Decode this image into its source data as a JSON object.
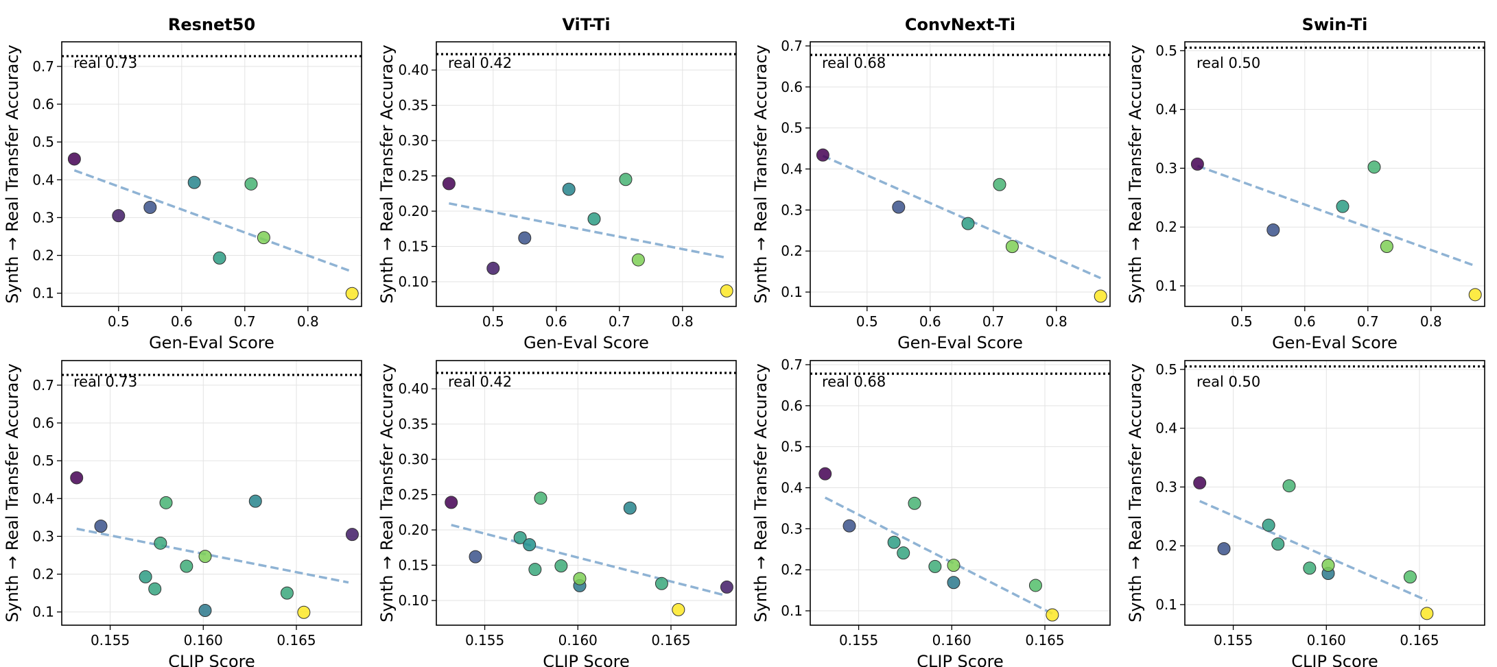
{
  "colors": {
    "trend_line": "#8fb3d4",
    "real_line": "#000000",
    "grid": "#e3e3e3",
    "point_palette": [
      "#440154",
      "#3b528b",
      "#21918c",
      "#5ec962",
      "#fde725"
    ]
  },
  "chart_data": [
    {
      "type": "scatter",
      "title": "Resnet50",
      "xlabel": "Gen-Eval Score",
      "ylabel": "Synth → Real Transfer Accuracy",
      "real_label": "real 0.73",
      "real_value": 0.727,
      "xlim": [
        0.41,
        0.885
      ],
      "ylim": [
        0.065,
        0.765
      ],
      "xticks": [
        0.5,
        0.6,
        0.7,
        0.8
      ],
      "xtick_labels": [
        "0.5",
        "0.6",
        "0.7",
        "0.8"
      ],
      "yticks": [
        0.1,
        0.2,
        0.3,
        0.4,
        0.5,
        0.6,
        0.7
      ],
      "ytick_labels": [
        "0.1",
        "0.2",
        "0.3",
        "0.4",
        "0.5",
        "0.6",
        "0.7"
      ],
      "trend": {
        "x": [
          0.43,
          0.87
        ],
        "y": [
          0.425,
          0.157
        ]
      },
      "points": [
        {
          "x": 0.43,
          "y": 0.455,
          "c": 0.0
        },
        {
          "x": 0.5,
          "y": 0.305,
          "c": 0.08
        },
        {
          "x": 0.55,
          "y": 0.327,
          "c": 0.25
        },
        {
          "x": 0.62,
          "y": 0.393,
          "c": 0.45
        },
        {
          "x": 0.66,
          "y": 0.193,
          "c": 0.55
        },
        {
          "x": 0.71,
          "y": 0.389,
          "c": 0.65
        },
        {
          "x": 0.73,
          "y": 0.247,
          "c": 0.8
        },
        {
          "x": 0.87,
          "y": 0.099,
          "c": 1.0
        }
      ]
    },
    {
      "type": "scatter",
      "title": "ViT-Ti",
      "xlabel": "Gen-Eval Score",
      "ylabel": "Synth → Real Transfer Accuracy",
      "real_label": "real 0.42",
      "real_value": 0.4225,
      "xlim": [
        0.41,
        0.885
      ],
      "ylim": [
        0.065,
        0.44
      ],
      "xticks": [
        0.5,
        0.6,
        0.7,
        0.8
      ],
      "xtick_labels": [
        "0.5",
        "0.6",
        "0.7",
        "0.8"
      ],
      "yticks": [
        0.1,
        0.15,
        0.2,
        0.25,
        0.3,
        0.35,
        0.4
      ],
      "ytick_labels": [
        "0.10",
        "0.15",
        "0.20",
        "0.25",
        "0.30",
        "0.35",
        "0.40"
      ],
      "trend": {
        "x": [
          0.43,
          0.87
        ],
        "y": [
          0.211,
          0.134
        ]
      },
      "points": [
        {
          "x": 0.43,
          "y": 0.239,
          "c": 0.0
        },
        {
          "x": 0.5,
          "y": 0.119,
          "c": 0.08
        },
        {
          "x": 0.55,
          "y": 0.162,
          "c": 0.25
        },
        {
          "x": 0.62,
          "y": 0.231,
          "c": 0.45
        },
        {
          "x": 0.66,
          "y": 0.189,
          "c": 0.55
        },
        {
          "x": 0.71,
          "y": 0.245,
          "c": 0.65
        },
        {
          "x": 0.73,
          "y": 0.131,
          "c": 0.8
        },
        {
          "x": 0.87,
          "y": 0.087,
          "c": 1.0
        }
      ]
    },
    {
      "type": "scatter",
      "title": "ConvNext-Ti",
      "xlabel": "Gen-Eval Score",
      "ylabel": "Synth → Real Transfer Accuracy",
      "real_label": "real 0.68",
      "real_value": 0.678,
      "xlim": [
        0.41,
        0.885
      ],
      "ylim": [
        0.065,
        0.71
      ],
      "xticks": [
        0.5,
        0.6,
        0.7,
        0.8
      ],
      "xtick_labels": [
        "0.5",
        "0.6",
        "0.7",
        "0.8"
      ],
      "yticks": [
        0.1,
        0.2,
        0.3,
        0.4,
        0.5,
        0.6,
        0.7
      ],
      "ytick_labels": [
        "0.1",
        "0.2",
        "0.3",
        "0.4",
        "0.5",
        "0.6",
        "0.7"
      ],
      "trend": {
        "x": [
          0.43,
          0.87
        ],
        "y": [
          0.432,
          0.134
        ]
      },
      "points": [
        {
          "x": 0.43,
          "y": 0.434,
          "c": 0.0
        },
        {
          "x": 0.55,
          "y": 0.307,
          "c": 0.25
        },
        {
          "x": 0.66,
          "y": 0.267,
          "c": 0.55
        },
        {
          "x": 0.71,
          "y": 0.362,
          "c": 0.65
        },
        {
          "x": 0.73,
          "y": 0.211,
          "c": 0.8
        },
        {
          "x": 0.87,
          "y": 0.09,
          "c": 1.0
        }
      ]
    },
    {
      "type": "scatter",
      "title": "Swin-Ti",
      "xlabel": "Gen-Eval Score",
      "ylabel": "Synth → Real Transfer Accuracy",
      "real_label": "real 0.50",
      "real_value": 0.505,
      "xlim": [
        0.41,
        0.885
      ],
      "ylim": [
        0.065,
        0.515
      ],
      "xticks": [
        0.5,
        0.6,
        0.7,
        0.8
      ],
      "xtick_labels": [
        "0.5",
        "0.6",
        "0.7",
        "0.8"
      ],
      "yticks": [
        0.1,
        0.2,
        0.3,
        0.4,
        0.5
      ],
      "ytick_labels": [
        "0.1",
        "0.2",
        "0.3",
        "0.4",
        "0.5"
      ],
      "trend": {
        "x": [
          0.43,
          0.87
        ],
        "y": [
          0.304,
          0.134
        ]
      },
      "points": [
        {
          "x": 0.43,
          "y": 0.307,
          "c": 0.0
        },
        {
          "x": 0.55,
          "y": 0.195,
          "c": 0.25
        },
        {
          "x": 0.66,
          "y": 0.235,
          "c": 0.55
        },
        {
          "x": 0.71,
          "y": 0.302,
          "c": 0.65
        },
        {
          "x": 0.73,
          "y": 0.167,
          "c": 0.8
        },
        {
          "x": 0.87,
          "y": 0.085,
          "c": 1.0
        }
      ]
    },
    {
      "type": "scatter",
      "title": "",
      "xlabel": "CLIP Score",
      "ylabel": "Synth → Real Transfer Accuracy",
      "real_label": "real 0.73",
      "real_value": 0.727,
      "xlim": [
        0.1524,
        0.1685
      ],
      "ylim": [
        0.065,
        0.765
      ],
      "xticks": [
        0.155,
        0.16,
        0.165
      ],
      "xtick_labels": [
        "0.155",
        "0.160",
        "0.165"
      ],
      "yticks": [
        0.1,
        0.2,
        0.3,
        0.4,
        0.5,
        0.6,
        0.7
      ],
      "ytick_labels": [
        "0.1",
        "0.2",
        "0.3",
        "0.4",
        "0.5",
        "0.6",
        "0.7"
      ],
      "trend": {
        "x": [
          0.1532,
          0.1678
        ],
        "y": [
          0.32,
          0.178
        ]
      },
      "points": [
        {
          "x": 0.1532,
          "y": 0.455,
          "c": 0.0
        },
        {
          "x": 0.1545,
          "y": 0.327,
          "c": 0.25
        },
        {
          "x": 0.1569,
          "y": 0.193,
          "c": 0.55
        },
        {
          "x": 0.1574,
          "y": 0.161,
          "c": 0.58
        },
        {
          "x": 0.1577,
          "y": 0.282,
          "c": 0.6
        },
        {
          "x": 0.158,
          "y": 0.389,
          "c": 0.65
        },
        {
          "x": 0.1591,
          "y": 0.221,
          "c": 0.62
        },
        {
          "x": 0.1601,
          "y": 0.104,
          "c": 0.4
        },
        {
          "x": 0.1601,
          "y": 0.247,
          "c": 0.8
        },
        {
          "x": 0.1628,
          "y": 0.393,
          "c": 0.45
        },
        {
          "x": 0.1645,
          "y": 0.15,
          "c": 0.6
        },
        {
          "x": 0.1654,
          "y": 0.099,
          "c": 1.0
        },
        {
          "x": 0.168,
          "y": 0.305,
          "c": 0.08
        }
      ]
    },
    {
      "type": "scatter",
      "title": "",
      "xlabel": "CLIP Score",
      "ylabel": "Synth → Real Transfer Accuracy",
      "real_label": "real 0.42",
      "real_value": 0.4225,
      "xlim": [
        0.1524,
        0.1685
      ],
      "ylim": [
        0.065,
        0.44
      ],
      "xticks": [
        0.155,
        0.16,
        0.165
      ],
      "xtick_labels": [
        "0.155",
        "0.160",
        "0.165"
      ],
      "yticks": [
        0.1,
        0.15,
        0.2,
        0.25,
        0.3,
        0.35,
        0.4
      ],
      "ytick_labels": [
        "0.10",
        "0.15",
        "0.20",
        "0.25",
        "0.30",
        "0.35",
        "0.40"
      ],
      "trend": {
        "x": [
          0.1532,
          0.1678
        ],
        "y": [
          0.207,
          0.108
        ]
      },
      "points": [
        {
          "x": 0.1532,
          "y": 0.239,
          "c": 0.0
        },
        {
          "x": 0.1545,
          "y": 0.162,
          "c": 0.25
        },
        {
          "x": 0.1569,
          "y": 0.189,
          "c": 0.55
        },
        {
          "x": 0.1574,
          "y": 0.179,
          "c": 0.5
        },
        {
          "x": 0.1577,
          "y": 0.144,
          "c": 0.6
        },
        {
          "x": 0.158,
          "y": 0.245,
          "c": 0.65
        },
        {
          "x": 0.1591,
          "y": 0.149,
          "c": 0.62
        },
        {
          "x": 0.1601,
          "y": 0.121,
          "c": 0.4
        },
        {
          "x": 0.1601,
          "y": 0.131,
          "c": 0.8
        },
        {
          "x": 0.1628,
          "y": 0.231,
          "c": 0.45
        },
        {
          "x": 0.1645,
          "y": 0.124,
          "c": 0.6
        },
        {
          "x": 0.1654,
          "y": 0.087,
          "c": 1.0
        },
        {
          "x": 0.168,
          "y": 0.119,
          "c": 0.08
        }
      ]
    },
    {
      "type": "scatter",
      "title": "",
      "xlabel": "CLIP Score",
      "ylabel": "Synth → Real Transfer Accuracy",
      "real_label": "real 0.68",
      "real_value": 0.678,
      "xlim": [
        0.1524,
        0.1685
      ],
      "ylim": [
        0.065,
        0.71
      ],
      "xticks": [
        0.155,
        0.16,
        0.165
      ],
      "xtick_labels": [
        "0.155",
        "0.160",
        "0.165"
      ],
      "yticks": [
        0.1,
        0.2,
        0.3,
        0.4,
        0.5,
        0.6,
        0.7
      ],
      "ytick_labels": [
        "0.1",
        "0.2",
        "0.3",
        "0.4",
        "0.5",
        "0.6",
        "0.7"
      ],
      "trend": {
        "x": [
          0.1532,
          0.1654
        ],
        "y": [
          0.376,
          0.093
        ]
      },
      "points": [
        {
          "x": 0.1532,
          "y": 0.434,
          "c": 0.0
        },
        {
          "x": 0.1545,
          "y": 0.307,
          "c": 0.25
        },
        {
          "x": 0.1569,
          "y": 0.267,
          "c": 0.55
        },
        {
          "x": 0.1574,
          "y": 0.241,
          "c": 0.58
        },
        {
          "x": 0.158,
          "y": 0.362,
          "c": 0.65
        },
        {
          "x": 0.1591,
          "y": 0.208,
          "c": 0.62
        },
        {
          "x": 0.1601,
          "y": 0.169,
          "c": 0.4
        },
        {
          "x": 0.1601,
          "y": 0.211,
          "c": 0.8
        },
        {
          "x": 0.1645,
          "y": 0.162,
          "c": 0.7
        },
        {
          "x": 0.1654,
          "y": 0.09,
          "c": 1.0
        }
      ]
    },
    {
      "type": "scatter",
      "title": "",
      "xlabel": "CLIP Score",
      "ylabel": "Synth → Real Transfer Accuracy",
      "real_label": "real 0.50",
      "real_value": 0.505,
      "xlim": [
        0.1524,
        0.1685
      ],
      "ylim": [
        0.065,
        0.515
      ],
      "xticks": [
        0.155,
        0.16,
        0.165
      ],
      "xtick_labels": [
        "0.155",
        "0.160",
        "0.165"
      ],
      "yticks": [
        0.1,
        0.2,
        0.3,
        0.4,
        0.5
      ],
      "ytick_labels": [
        "0.1",
        "0.2",
        "0.3",
        "0.4",
        "0.5"
      ],
      "trend": {
        "x": [
          0.1532,
          0.1654
        ],
        "y": [
          0.276,
          0.107
        ]
      },
      "points": [
        {
          "x": 0.1532,
          "y": 0.307,
          "c": 0.0
        },
        {
          "x": 0.1545,
          "y": 0.195,
          "c": 0.25
        },
        {
          "x": 0.1569,
          "y": 0.235,
          "c": 0.55
        },
        {
          "x": 0.1574,
          "y": 0.203,
          "c": 0.58
        },
        {
          "x": 0.158,
          "y": 0.302,
          "c": 0.65
        },
        {
          "x": 0.1591,
          "y": 0.162,
          "c": 0.62
        },
        {
          "x": 0.1601,
          "y": 0.153,
          "c": 0.4
        },
        {
          "x": 0.1601,
          "y": 0.167,
          "c": 0.8
        },
        {
          "x": 0.1645,
          "y": 0.147,
          "c": 0.7
        },
        {
          "x": 0.1654,
          "y": 0.085,
          "c": 1.0
        }
      ]
    }
  ]
}
